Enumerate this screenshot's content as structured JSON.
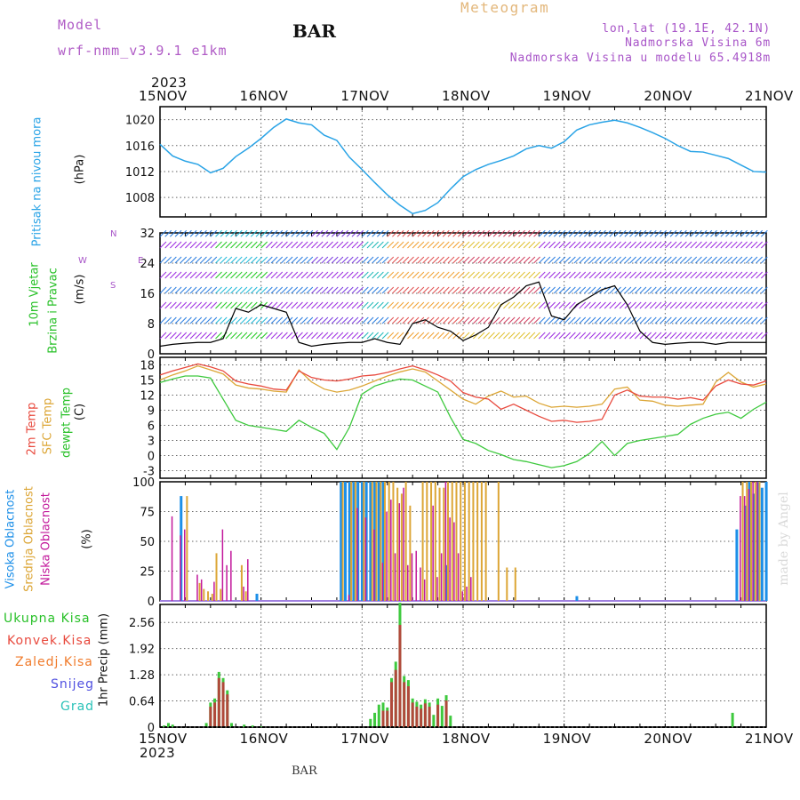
{
  "header": {
    "model_label": "Model",
    "model_name": "wrf-nmm_v3.9.1  e1km",
    "station": "BAR",
    "chart_kind": "Meteogram",
    "lonlat": "lon,lat (19.1E, 42.1N)",
    "elevation": "Nadmorska Visina 6m",
    "model_elevation": "Nadmorska Visina u modelu 65.4918m",
    "watermark": "made by Angel",
    "footer_station": "BAR"
  },
  "axis_dates": {
    "year": "2023",
    "ticks": [
      "15NOV",
      "16NOV",
      "17NOV",
      "18NOV",
      "19NOV",
      "20NOV",
      "21NOV"
    ]
  },
  "colors": {
    "pressure": "#29a3e6",
    "temp2m": "#e8493d",
    "sfc": "#dca636",
    "dewpt": "#3ec93e",
    "high_cloud": "#1c8fe8",
    "mid_cloud": "#dca636",
    "low_cloud": "#c2189b",
    "rain": "#3ec93e",
    "conv_rain": "#e84f4f",
    "frz_rain": "#f07a2a",
    "snow": "#5050e0",
    "hail": "#2ac2b8",
    "wind_purple": "#9b2ae0",
    "grid": "#666666"
  },
  "chart_data": [
    {
      "type": "line",
      "title": "",
      "ylabel_colored": "Pritisak na nivou mora",
      "ylabel_unit": "(hPa)",
      "x_range_hours": [
        0,
        144
      ],
      "ylim": [
        1005,
        1022
      ],
      "yticks": [
        1008,
        1012,
        1016,
        1020
      ],
      "series": [
        {
          "name": "Pritisak na nivou mora",
          "x": [
            0,
            3,
            6,
            9,
            12,
            15,
            18,
            21,
            24,
            27,
            30,
            33,
            36,
            39,
            42,
            45,
            48,
            51,
            54,
            57,
            60,
            63,
            66,
            69,
            72,
            75,
            78,
            81,
            84,
            87,
            90,
            93,
            96,
            99,
            102,
            105,
            108,
            111,
            114,
            117,
            120,
            123,
            126,
            129,
            132,
            135,
            138,
            141,
            144
          ],
          "values": [
            1016.2,
            1014.4,
            1013.6,
            1013.1,
            1011.8,
            1012.5,
            1014.3,
            1015.6,
            1017.1,
            1018.8,
            1020.1,
            1019.5,
            1019.2,
            1017.6,
            1016.8,
            1014.2,
            1012.3,
            1010.3,
            1008.4,
            1006.8,
            1005.5,
            1006.0,
            1007.2,
            1009.3,
            1011.2,
            1012.3,
            1013.1,
            1013.7,
            1014.4,
            1015.5,
            1016.0,
            1015.6,
            1016.6,
            1018.4,
            1019.2,
            1019.6,
            1019.9,
            1019.5,
            1018.8,
            1018.0,
            1017.1,
            1016.0,
            1015.1,
            1015.0,
            1014.5,
            1014.0,
            1013.0,
            1012.0,
            1011.9
          ]
        }
      ]
    },
    {
      "type": "line",
      "title": "",
      "ylabel_colored": [
        "10m Vjetar",
        "Brzina i Pravac"
      ],
      "ylabel_unit": "(m/s)",
      "compass": [
        "N",
        "W",
        "E",
        "S"
      ],
      "ylim": [
        0,
        32
      ],
      "yticks": [
        0,
        8,
        16,
        24
      ],
      "top_label": "32",
      "series": [
        {
          "name": "10m Vjetar brzina",
          "x": [
            0,
            3,
            6,
            9,
            12,
            15,
            18,
            21,
            24,
            27,
            30,
            33,
            36,
            39,
            42,
            45,
            48,
            51,
            54,
            57,
            60,
            63,
            66,
            69,
            72,
            75,
            78,
            81,
            84,
            87,
            90,
            93,
            96,
            99,
            102,
            105,
            108,
            111,
            114,
            117,
            120,
            123,
            126,
            129,
            132,
            135,
            138,
            141,
            144
          ],
          "values": [
            2,
            2.5,
            2.8,
            3,
            3,
            4,
            12,
            11,
            13,
            12,
            11,
            3,
            2,
            2.5,
            2.8,
            3,
            3,
            4,
            3,
            2.5,
            8,
            9,
            7,
            6,
            3.5,
            5,
            7,
            13,
            15,
            18,
            19,
            10,
            9,
            13,
            15,
            17,
            18,
            13,
            6,
            3,
            2.5,
            2.8,
            3,
            3,
            2.5,
            3,
            3,
            3,
            3
          ]
        }
      ]
    },
    {
      "type": "line",
      "title": "",
      "ylabel_colored": [
        "2m Temp",
        "SFC Temp",
        "dewpt Temp"
      ],
      "ylabel_unit": "(C)",
      "ylim": [
        -4.5,
        19.5
      ],
      "yticks": [
        -3,
        0,
        3,
        6,
        9,
        12,
        15,
        18
      ],
      "series": [
        {
          "name": "2m Temp",
          "x": [
            0,
            3,
            6,
            9,
            12,
            15,
            18,
            21,
            24,
            27,
            30,
            33,
            36,
            39,
            42,
            45,
            48,
            51,
            54,
            57,
            60,
            63,
            66,
            69,
            72,
            75,
            78,
            81,
            84,
            87,
            90,
            93,
            96,
            99,
            102,
            105,
            108,
            111,
            114,
            117,
            120,
            123,
            126,
            129,
            132,
            135,
            138,
            141,
            144
          ],
          "values": [
            16,
            16.8,
            17.5,
            18.2,
            17.6,
            16.8,
            14.8,
            14.2,
            13.8,
            13.2,
            13.0,
            16.8,
            15.5,
            15.0,
            14.8,
            15.2,
            15.8,
            16.0,
            16.5,
            17.2,
            17.8,
            17.0,
            16.0,
            14.8,
            12.5,
            11.6,
            11.2,
            9.2,
            10.2,
            9.0,
            7.8,
            6.8,
            7.0,
            6.6,
            6.8,
            7.2,
            12.0,
            13.0,
            11.8,
            11.6,
            11.6,
            11.2,
            11.5,
            11.0,
            13.8,
            15.0,
            14.2,
            14.0,
            14.8
          ]
        },
        {
          "name": "SFC Temp",
          "x": [
            0,
            3,
            6,
            9,
            12,
            15,
            18,
            21,
            24,
            27,
            30,
            33,
            36,
            39,
            42,
            45,
            48,
            51,
            54,
            57,
            60,
            63,
            66,
            69,
            72,
            75,
            78,
            81,
            84,
            87,
            90,
            93,
            96,
            99,
            102,
            105,
            108,
            111,
            114,
            117,
            120,
            123,
            126,
            129,
            132,
            135,
            138,
            141,
            144
          ],
          "values": [
            15,
            16.0,
            16.8,
            17.8,
            17.0,
            16.2,
            14.0,
            13.4,
            13.2,
            12.8,
            12.6,
            17.0,
            14.6,
            13.2,
            12.6,
            13.0,
            13.8,
            14.8,
            15.8,
            16.6,
            17.2,
            16.6,
            14.8,
            13.0,
            11.2,
            10.2,
            11.8,
            12.8,
            11.6,
            11.8,
            10.4,
            9.6,
            9.8,
            9.6,
            9.8,
            10.2,
            13.2,
            13.6,
            11.0,
            10.8,
            10.0,
            9.8,
            10.0,
            10.2,
            14.6,
            16.5,
            14.6,
            13.6,
            14.2
          ]
        },
        {
          "name": "dewpt Temp",
          "x": [
            0,
            3,
            6,
            9,
            12,
            15,
            18,
            21,
            24,
            27,
            30,
            33,
            36,
            39,
            42,
            45,
            48,
            51,
            54,
            57,
            60,
            63,
            66,
            69,
            72,
            75,
            78,
            81,
            84,
            87,
            90,
            93,
            96,
            99,
            102,
            105,
            108,
            111,
            114,
            117,
            120,
            123,
            126,
            129,
            132,
            135,
            138,
            141,
            144
          ],
          "values": [
            14.5,
            15.2,
            15.8,
            15.8,
            15.4,
            11.2,
            7.0,
            6.0,
            5.6,
            5.2,
            4.8,
            7.0,
            5.6,
            4.4,
            1.2,
            5.6,
            12.2,
            13.8,
            14.6,
            15.2,
            15.0,
            13.8,
            12.6,
            7.6,
            3.2,
            2.4,
            1.0,
            0.2,
            -0.8,
            -1.2,
            -1.8,
            -2.4,
            -2.0,
            -1.2,
            0.4,
            2.8,
            0.0,
            2.4,
            3.0,
            3.4,
            3.8,
            4.2,
            6.2,
            7.4,
            8.2,
            8.6,
            7.4,
            9.2,
            10.6
          ]
        }
      ]
    },
    {
      "type": "bar",
      "title": "",
      "ylabel_colored": [
        "Visoka Oblacnost",
        "Srednja Oblacnost",
        "Niska Oblacnost"
      ],
      "ylabel_unit": "(%)",
      "ylim": [
        0,
        100
      ],
      "yticks": [
        0,
        25,
        50,
        75,
        100
      ],
      "series": [
        {
          "name": "Visoka Oblacnost",
          "x": [
            5,
            23,
            43,
            44,
            45,
            46,
            47,
            48,
            49,
            50,
            51,
            52,
            53,
            68,
            99,
            137,
            139,
            140,
            141,
            142,
            143,
            144
          ],
          "values": [
            88,
            6,
            100,
            100,
            100,
            100,
            100,
            100,
            100,
            100,
            100,
            100,
            100,
            30,
            4,
            60,
            80,
            100,
            90,
            100,
            95,
            100
          ]
        },
        {
          "name": "Srednja Oblacnost",
          "x": [
            6,
            9,
            10,
            11,
            12,
            13,
            14,
            19,
            20,
            43,
            45,
            46,
            48,
            50,
            51,
            52,
            53,
            54,
            55,
            56,
            57,
            58,
            59,
            62,
            63,
            64,
            65,
            66,
            67,
            68,
            69,
            70,
            71,
            72,
            73,
            74,
            75,
            76,
            77,
            80,
            82,
            84,
            138,
            139,
            140,
            141,
            142
          ],
          "values": [
            88,
            15,
            10,
            8,
            6,
            40,
            10,
            30,
            8,
            100,
            100,
            100,
            100,
            100,
            100,
            100,
            100,
            100,
            100,
            95,
            90,
            100,
            80,
            100,
            100,
            100,
            100,
            95,
            95,
            100,
            100,
            100,
            100,
            100,
            100,
            100,
            100,
            100,
            100,
            100,
            28,
            28,
            100,
            100,
            100,
            100,
            100
          ]
        },
        {
          "name": "Niska Oblacnost",
          "x": [
            2,
            4,
            5,
            8,
            9,
            12,
            14,
            15,
            16,
            19,
            20,
            44,
            46,
            48,
            50,
            52,
            53,
            54,
            55,
            56,
            57,
            58,
            59,
            60,
            61,
            62,
            64,
            65,
            66,
            67,
            68,
            69,
            70,
            71,
            72,
            73,
            137,
            138,
            139,
            140,
            141
          ],
          "values": [
            71,
            55,
            60,
            22,
            18,
            16,
            60,
            30,
            42,
            12,
            35,
            5,
            78,
            70,
            60,
            32,
            75,
            85,
            40,
            82,
            95,
            30,
            40,
            42,
            28,
            18,
            80,
            20,
            40,
            100,
            70,
            66,
            40,
            8,
            12,
            20,
            88,
            88,
            94,
            100,
            100
          ]
        }
      ]
    },
    {
      "type": "bar",
      "title": "",
      "ylabel_unit": "1hr Precip (mm)",
      "ylim": [
        0,
        3.0
      ],
      "yticks": [
        0,
        0.64,
        1.28,
        1.92,
        2.56
      ],
      "ytick_labels": [
        "0",
        "0.64",
        "1.28",
        "1.92",
        "2.56"
      ],
      "legend": [
        "Ukupna Kisa",
        "Konvek.Kisa",
        "Zaledj.Kisa",
        "Snijeg",
        "Grad"
      ],
      "series": [
        {
          "name": "Ukupna Kisa",
          "x": [
            1,
            2,
            3,
            11,
            12,
            13,
            14,
            15,
            16,
            17,
            20,
            22,
            24,
            50,
            51,
            52,
            53,
            54,
            55,
            56,
            57,
            58,
            59,
            60,
            61,
            62,
            63,
            64,
            65,
            66,
            67,
            68,
            69,
            136
          ],
          "values": [
            0.04,
            0.1,
            0.06,
            0.1,
            0.6,
            0.7,
            1.35,
            1.2,
            0.9,
            0.1,
            0.06,
            0.04,
            0.02,
            0.2,
            0.35,
            0.55,
            0.6,
            0.48,
            1.2,
            1.6,
            3.04,
            1.25,
            1.15,
            0.7,
            0.62,
            0.55,
            0.68,
            0.6,
            0.3,
            0.7,
            0.52,
            0.78,
            0.28,
            0.35
          ]
        },
        {
          "name": "Konvek.Kisa",
          "x": [
            12,
            13,
            14,
            15,
            16,
            53,
            54,
            55,
            56,
            57,
            58,
            59,
            60,
            61,
            62,
            63,
            64,
            66,
            68
          ],
          "values": [
            0.5,
            0.6,
            1.2,
            1.1,
            0.8,
            0.4,
            0.4,
            1.1,
            1.4,
            2.5,
            1.1,
            1.0,
            0.6,
            0.5,
            0.45,
            0.58,
            0.5,
            0.55,
            0.65
          ]
        }
      ]
    }
  ]
}
